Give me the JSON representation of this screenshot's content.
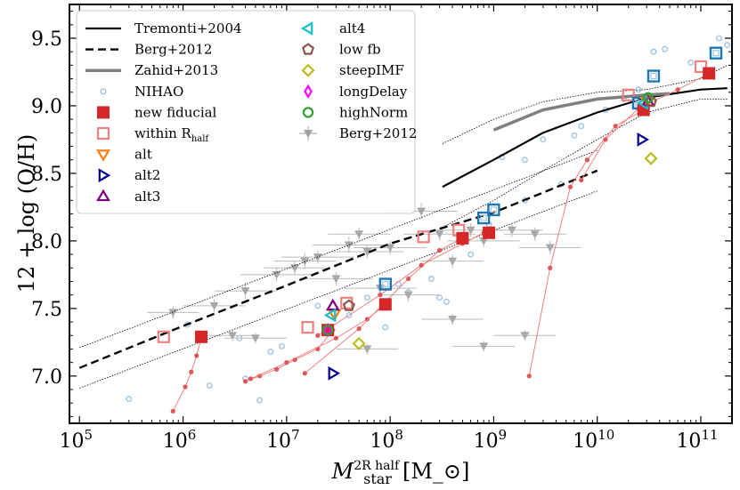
{
  "chart_data": {
    "type": "scatter",
    "xscale": "log",
    "xlim": [
      80000,
      200000000000
    ],
    "ylim": [
      6.65,
      9.75
    ],
    "xticks": [
      100000,
      1000000,
      10000000,
      100000000,
      1000000000,
      10000000000,
      100000000000
    ],
    "xtick_labels": [
      "10^5",
      "10^6",
      "10^7",
      "10^8",
      "10^9",
      "10^10",
      "10^11"
    ],
    "yticks": [
      7.0,
      7.5,
      8.0,
      8.5,
      9.0,
      9.5
    ],
    "ytick_labels": [
      "7.0",
      "7.5",
      "8.0",
      "8.5",
      "9.0",
      "9.5"
    ],
    "xlabel": "M_star^{2R_half} [M_⊙]",
    "ylabel": "12 + log (O/H)",
    "legend_position": "upper-left",
    "legend": [
      {
        "label": "Tremonti+2004",
        "symbol": "line-solid",
        "color": "#000000"
      },
      {
        "label": "Berg+2012",
        "symbol": "line-dashed",
        "color": "#000000"
      },
      {
        "label": "Zahid+2013",
        "symbol": "line-thick",
        "color": "#808080"
      },
      {
        "label": "NIHAO",
        "symbol": "small-circle",
        "color": "#9ec4e6"
      },
      {
        "label": "new fiducial",
        "symbol": "filled-square",
        "color": "#d62728"
      },
      {
        "label": "within R_half",
        "symbol": "open-square",
        "color": "#f08080"
      },
      {
        "label": "alt",
        "symbol": "triangle-down",
        "color": "#ff7f0e"
      },
      {
        "label": "alt2",
        "symbol": "triangle-right",
        "color": "#00008b"
      },
      {
        "label": "alt3",
        "symbol": "triangle-up",
        "color": "#800080"
      },
      {
        "label": "alt4",
        "symbol": "triangle-left",
        "color": "#17becf"
      },
      {
        "label": "low fb",
        "symbol": "pentagon",
        "color": "#8c564b"
      },
      {
        "label": "steepIMF",
        "symbol": "diamond",
        "color": "#bcbd22"
      },
      {
        "label": "longDelay",
        "symbol": "thin-diamond",
        "color": "#ff00ff"
      },
      {
        "label": "highNorm",
        "symbol": "circle",
        "color": "#2ca02c"
      },
      {
        "label": "Berg+2012",
        "symbol": "errorbar-triangle",
        "color": "#a0a0a0"
      }
    ],
    "series": [
      {
        "name": "Tremonti+2004",
        "style": "solid",
        "color": "#000000",
        "x": [
          320000000,
          1000000000,
          3000000000,
          10000000000,
          30000000000,
          100000000000,
          180000000000
        ],
        "y": [
          8.4,
          8.6,
          8.8,
          8.95,
          9.06,
          9.12,
          9.13
        ]
      },
      {
        "name": "Tremonti+2004 upper",
        "style": "dotted",
        "color": "#000000",
        "x": [
          320000000,
          1000000000,
          3000000000,
          10000000000,
          30000000000,
          100000000000,
          180000000000
        ],
        "y": [
          8.72,
          8.9,
          9.03,
          9.1,
          9.12,
          9.2,
          9.3
        ]
      },
      {
        "name": "Tremonti+2004 lower",
        "style": "dotted",
        "color": "#000000",
        "x": [
          320000000,
          1000000000,
          3000000000,
          10000000000,
          30000000000,
          100000000000,
          180000000000
        ],
        "y": [
          8.1,
          8.3,
          8.52,
          8.75,
          8.95,
          9.05,
          9.05
        ]
      },
      {
        "name": "Zahid+2013",
        "style": "thick",
        "color": "#808080",
        "x": [
          1000000000,
          3000000000,
          10000000000,
          30000000000,
          50000000000
        ],
        "y": [
          8.82,
          8.97,
          9.05,
          9.08,
          9.09
        ]
      },
      {
        "name": "Berg+2012",
        "style": "dashed",
        "color": "#000000",
        "x": [
          100000,
          1000000,
          10000000,
          100000000,
          1000000000,
          10000000000
        ],
        "y": [
          7.06,
          7.37,
          7.67,
          7.98,
          8.21,
          8.52
        ]
      },
      {
        "name": "Berg+2012 upper",
        "style": "dotted",
        "color": "#000000",
        "x": [
          100000,
          10000000000
        ],
        "y": [
          7.21,
          8.67
        ]
      },
      {
        "name": "Berg+2012 lower",
        "style": "dotted",
        "color": "#000000",
        "x": [
          100000,
          10000000000
        ],
        "y": [
          6.91,
          8.37
        ]
      }
    ],
    "tracks": [
      {
        "x": [
          800000,
          1050000,
          1200000,
          1350000,
          1500000
        ],
        "y": [
          6.74,
          6.92,
          7.03,
          7.15,
          7.28
        ]
      },
      {
        "x": [
          4000000,
          5500000,
          8000000,
          12000000,
          20000000,
          28000000
        ],
        "y": [
          6.96,
          7.0,
          7.05,
          7.12,
          7.2,
          7.34
        ]
      },
      {
        "x": [
          4500000,
          10000000,
          30000000,
          60000000,
          90000000
        ],
        "y": [
          6.98,
          7.1,
          7.28,
          7.42,
          7.53
        ]
      },
      {
        "x": [
          15000000,
          50000000,
          150000000,
          300000000,
          500000000
        ],
        "y": [
          7.02,
          7.35,
          7.72,
          7.93,
          8.02
        ]
      },
      {
        "x": [
          20000000,
          80000000,
          200000000,
          500000000,
          800000000
        ],
        "y": [
          7.3,
          7.6,
          7.82,
          7.98,
          8.06
        ]
      },
      {
        "x": [
          2200000000,
          3500000000,
          5500000000,
          8000000000,
          15000000000,
          28000000000
        ],
        "y": [
          7.0,
          7.8,
          8.4,
          8.6,
          8.85,
          8.97
        ]
      },
      {
        "x": [
          7000000000,
          12000000000,
          25000000000,
          60000000000,
          120000000000
        ],
        "y": [
          8.45,
          8.75,
          8.98,
          9.12,
          9.24
        ]
      }
    ],
    "track_color": "#f08080",
    "new_fiducial": {
      "x": [
        1500000,
        25000000,
        90000000,
        500000000,
        900000000,
        28000000000,
        120000000000
      ],
      "y": [
        7.29,
        7.34,
        7.53,
        8.02,
        8.06,
        8.97,
        9.24
      ]
    },
    "within_rhalf": {
      "x": [
        650000,
        16000000,
        38000000,
        210000000,
        460000000,
        20000000000,
        100000000000
      ],
      "y": [
        7.29,
        7.36,
        7.54,
        8.03,
        8.08,
        9.08,
        9.29
      ]
    },
    "blue_squares": {
      "x": [
        90000000,
        800000000,
        1000000000,
        25000000000,
        35000000000,
        140000000000
      ],
      "y": [
        7.68,
        8.17,
        8.23,
        9.02,
        9.22,
        9.39
      ]
    },
    "alt": {
      "x": [
        29000000,
        30000000000
      ],
      "y": [
        7.46,
        9.03
      ]
    },
    "alt2": {
      "x": [
        28000000,
        27000000000
      ],
      "y": [
        7.02,
        8.75
      ]
    },
    "alt3": {
      "x": [
        28000000,
        31000000000
      ],
      "y": [
        7.52,
        9.03
      ]
    },
    "alt4": {
      "x": [
        27000000,
        28000000000
      ],
      "y": [
        7.45,
        9.02
      ]
    },
    "low_fb": {
      "x": [
        40000000,
        33000000000
      ],
      "y": [
        7.52,
        9.03
      ]
    },
    "steepIMF": {
      "x": [
        50000000,
        33000000000
      ],
      "y": [
        7.24,
        8.61
      ]
    },
    "longDelay": {
      "x": [
        25000000
      ],
      "y": [
        7.34
      ]
    },
    "highNorm": {
      "x": [
        25000000,
        31000000000
      ],
      "y": [
        7.34,
        9.06
      ]
    },
    "nihao": {
      "x": [
        300000,
        1100000,
        1800000,
        3500000,
        4000000,
        5500000,
        7000000,
        9000000,
        20000000,
        40000000,
        60000000,
        90000000,
        150000000,
        300000000,
        350000000,
        600000000,
        1200000000,
        2000000000,
        3000000000,
        4500000000,
        7000000000,
        12000000000,
        18000000000,
        35000000000,
        45000000000,
        80000000000,
        150000000000,
        180000000000,
        25000000000,
        2000000000,
        6000000000,
        900000000,
        250000000,
        120000000
      ],
      "y": [
        6.83,
        7.38,
        6.93,
        7.28,
        6.98,
        6.82,
        7.18,
        7.22,
        7.52,
        7.45,
        7.58,
        7.36,
        7.62,
        7.58,
        7.55,
        7.9,
        8.62,
        8.6,
        8.75,
        8.42,
        8.85,
        8.97,
        9.05,
        9.4,
        9.42,
        9.32,
        9.5,
        9.45,
        9.12,
        8.3,
        8.78,
        8.12,
        7.72,
        7.68
      ]
    },
    "berg2012_points": [
      {
        "x": 800000,
        "y": 7.47,
        "xerr": 0.25,
        "yerr": 0.05
      },
      {
        "x": 2000000,
        "y": 7.52,
        "xerr": 0.3,
        "yerr": 0.05
      },
      {
        "x": 3000000,
        "y": 7.3,
        "xerr": 0.25,
        "yerr": 0.04
      },
      {
        "x": 4000000,
        "y": 7.63,
        "xerr": 0.3,
        "yerr": 0.06
      },
      {
        "x": 5000000,
        "y": 7.28,
        "xerr": 0.3,
        "yerr": 0.04
      },
      {
        "x": 8000000,
        "y": 7.75,
        "xerr": 0.35,
        "yerr": 0.05
      },
      {
        "x": 12000000,
        "y": 7.8,
        "xerr": 0.3,
        "yerr": 0.05
      },
      {
        "x": 15000000,
        "y": 7.85,
        "xerr": 0.3,
        "yerr": 0.06
      },
      {
        "x": 20000000,
        "y": 7.88,
        "xerr": 0.35,
        "yerr": 0.05
      },
      {
        "x": 30000000,
        "y": 7.72,
        "xerr": 0.35,
        "yerr": 0.05
      },
      {
        "x": 40000000,
        "y": 7.97,
        "xerr": 0.35,
        "yerr": 0.06
      },
      {
        "x": 50000000,
        "y": 8.05,
        "xerr": 0.3,
        "yerr": 0.05
      },
      {
        "x": 60000000,
        "y": 7.92,
        "xerr": 0.35,
        "yerr": 0.05
      },
      {
        "x": 80000000,
        "y": 7.65,
        "xerr": 0.35,
        "yerr": 0.05
      },
      {
        "x": 100000000,
        "y": 7.95,
        "xerr": 0.35,
        "yerr": 0.05
      },
      {
        "x": 150000000,
        "y": 7.6,
        "xerr": 0.3,
        "yerr": 0.05
      },
      {
        "x": 200000000,
        "y": 8.22,
        "xerr": 0.35,
        "yerr": 0.06
      },
      {
        "x": 300000000,
        "y": 8.05,
        "xerr": 0.35,
        "yerr": 0.05
      },
      {
        "x": 400000000,
        "y": 7.85,
        "xerr": 0.3,
        "yerr": 0.05
      },
      {
        "x": 600000000,
        "y": 8.08,
        "xerr": 0.35,
        "yerr": 0.05
      },
      {
        "x": 800000000,
        "y": 8.0,
        "xerr": 0.35,
        "yerr": 0.05
      },
      {
        "x": 1500000000,
        "y": 8.08,
        "xerr": 0.3,
        "yerr": 0.05
      },
      {
        "x": 2500000000,
        "y": 8.05,
        "xerr": 0.3,
        "yerr": 0.05
      },
      {
        "x": 3500000000,
        "y": 7.95,
        "xerr": 0.3,
        "yerr": 0.05
      },
      {
        "x": 60000000,
        "y": 7.2,
        "xerr": 0.3,
        "yerr": 0.04
      },
      {
        "x": 400000000,
        "y": 7.42,
        "xerr": 0.3,
        "yerr": 0.04
      },
      {
        "x": 800000000,
        "y": 7.22,
        "xerr": 0.3,
        "yerr": 0.04
      },
      {
        "x": 2000000000,
        "y": 7.3,
        "xerr": 0.3,
        "yerr": 0.04
      }
    ]
  }
}
